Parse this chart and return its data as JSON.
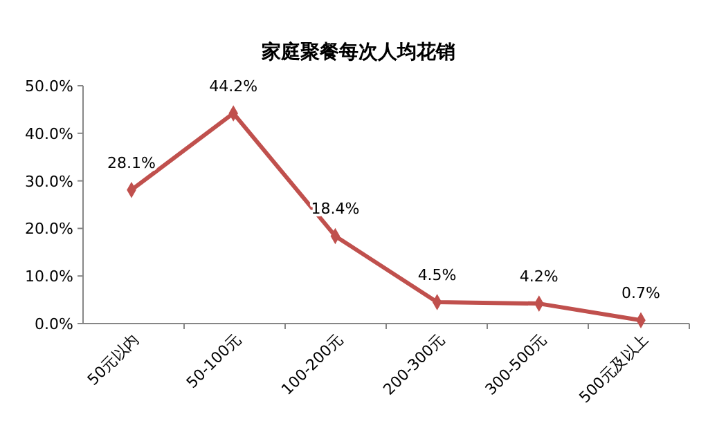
{
  "chart_data": {
    "type": "line",
    "title": "家庭聚餐每次人均花销",
    "categories": [
      "50元以内",
      "50-100元",
      "100-200元",
      "200-300元",
      "300-500元",
      "500元及以上"
    ],
    "series": [
      {
        "color": "#c0504d",
        "values": [
          28.1,
          44.2,
          18.4,
          4.5,
          4.2,
          0.7
        ],
        "value_labels": [
          "28.1%",
          "44.2%",
          "18.4%",
          "4.5%",
          "4.2%",
          "0.7%"
        ]
      }
    ],
    "ylim": [
      0,
      50
    ],
    "yticks": [
      {
        "value": 0,
        "label": "0.0%"
      },
      {
        "value": 10,
        "label": "10.0%"
      },
      {
        "value": 20,
        "label": "20.0%"
      },
      {
        "value": 30,
        "label": "30.0%"
      },
      {
        "value": 40,
        "label": "40.0%"
      },
      {
        "value": 50,
        "label": "50.0%"
      }
    ],
    "grid": false,
    "marker": "diamond",
    "line_style": "solid"
  }
}
